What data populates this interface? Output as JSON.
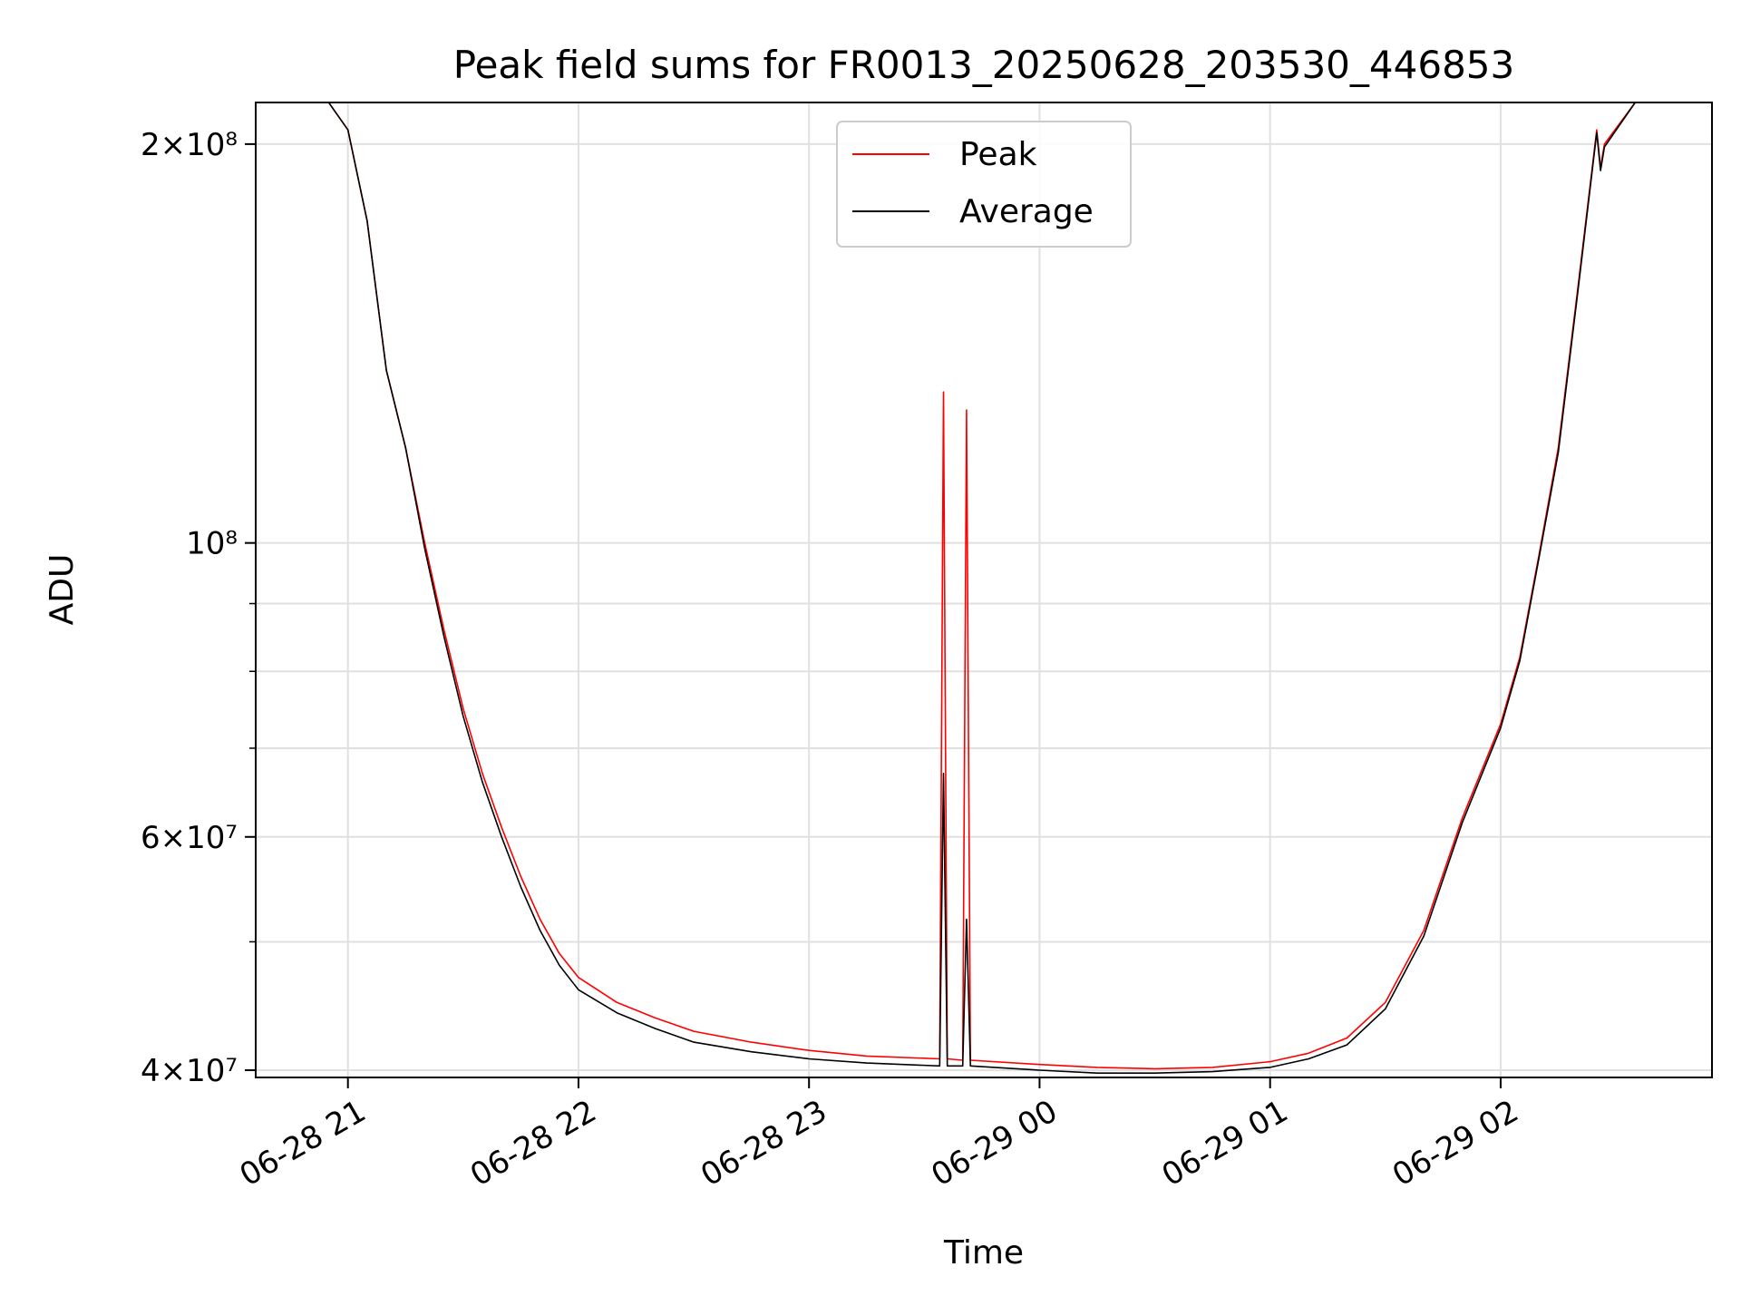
{
  "chart_data": {
    "type": "line",
    "title": "Peak field sums for FR0013_20250628_203530_446853",
    "xlabel": "Time",
    "ylabel": "ADU",
    "y_scale": "log",
    "ylim": [
      39500000,
      215000000
    ],
    "xlim": [
      "2025-06-28 20:36",
      "2025-06-29 02:55"
    ],
    "grid": true,
    "legend_position": "upper center",
    "x_ticks": [
      {
        "value": "2025-06-28 21:00",
        "label": "06-28 21"
      },
      {
        "value": "2025-06-28 22:00",
        "label": "06-28 22"
      },
      {
        "value": "2025-06-28 23:00",
        "label": "06-28 23"
      },
      {
        "value": "2025-06-29 00:00",
        "label": "06-29 00"
      },
      {
        "value": "2025-06-29 01:00",
        "label": "06-29 01"
      },
      {
        "value": "2025-06-29 02:00",
        "label": "06-29 02"
      }
    ],
    "y_ticks": [
      {
        "value": 40000000,
        "label": "4×10⁷"
      },
      {
        "value": 60000000,
        "label": "6×10⁷"
      },
      {
        "value": 100000000,
        "label": "10⁸"
      },
      {
        "value": 200000000,
        "label": "2×10⁸"
      }
    ],
    "y_minor_ticks": [
      50000000,
      70000000,
      80000000,
      90000000
    ],
    "series": [
      {
        "name": "Peak",
        "color": "#ff0000",
        "x": [
          "2025-06-28 20:36",
          "2025-06-28 20:55",
          "2025-06-28 21:00",
          "2025-06-28 21:05",
          "2025-06-28 21:10",
          "2025-06-28 21:15",
          "2025-06-28 21:20",
          "2025-06-28 21:25",
          "2025-06-28 21:30",
          "2025-06-28 21:35",
          "2025-06-28 21:40",
          "2025-06-28 21:45",
          "2025-06-28 21:50",
          "2025-06-28 21:55",
          "2025-06-28 22:00",
          "2025-06-28 22:10",
          "2025-06-28 22:20",
          "2025-06-28 22:30",
          "2025-06-28 22:45",
          "2025-06-28 23:00",
          "2025-06-28 23:15",
          "2025-06-28 23:34",
          "2025-06-28 23:35",
          "2025-06-28 23:36",
          "2025-06-28 23:40",
          "2025-06-28 23:41",
          "2025-06-28 23:42",
          "2025-06-29 00:00",
          "2025-06-29 00:15",
          "2025-06-29 00:30",
          "2025-06-29 00:45",
          "2025-06-29 01:00",
          "2025-06-29 01:10",
          "2025-06-29 01:20",
          "2025-06-29 01:30",
          "2025-06-29 01:40",
          "2025-06-29 01:50",
          "2025-06-29 02:00",
          "2025-06-29 02:05",
          "2025-06-29 02:10",
          "2025-06-29 02:15",
          "2025-06-29 02:20",
          "2025-06-29 02:25",
          "2025-06-29 02:26",
          "2025-06-29 02:27",
          "2025-06-29 02:35",
          "2025-06-29 02:55"
        ],
        "values": [
          215000000,
          215000000,
          205000000,
          175000000,
          135000000,
          118000000,
          100000000,
          86000000,
          75000000,
          67000000,
          61000000,
          56000000,
          52000000,
          49000000,
          47000000,
          45000000,
          43800000,
          42800000,
          42000000,
          41400000,
          41000000,
          40800000,
          130000000,
          40800000,
          40700000,
          126000000,
          40700000,
          40400000,
          40200000,
          40100000,
          40200000,
          40600000,
          41200000,
          42300000,
          45000000,
          51000000,
          62000000,
          73000000,
          82000000,
          98000000,
          118000000,
          155000000,
          205000000,
          192000000,
          200000000,
          215000000,
          215000000
        ]
      },
      {
        "name": "Average",
        "color": "#000000",
        "x": [
          "2025-06-28 20:36",
          "2025-06-28 20:55",
          "2025-06-28 21:00",
          "2025-06-28 21:05",
          "2025-06-28 21:10",
          "2025-06-28 21:15",
          "2025-06-28 21:20",
          "2025-06-28 21:25",
          "2025-06-28 21:30",
          "2025-06-28 21:35",
          "2025-06-28 21:40",
          "2025-06-28 21:45",
          "2025-06-28 21:50",
          "2025-06-28 21:55",
          "2025-06-28 22:00",
          "2025-06-28 22:10",
          "2025-06-28 22:20",
          "2025-06-28 22:30",
          "2025-06-28 22:45",
          "2025-06-28 23:00",
          "2025-06-28 23:15",
          "2025-06-28 23:34",
          "2025-06-28 23:35",
          "2025-06-28 23:36",
          "2025-06-28 23:40",
          "2025-06-28 23:41",
          "2025-06-28 23:42",
          "2025-06-29 00:00",
          "2025-06-29 00:15",
          "2025-06-29 00:30",
          "2025-06-29 00:45",
          "2025-06-29 01:00",
          "2025-06-29 01:10",
          "2025-06-29 01:20",
          "2025-06-29 01:30",
          "2025-06-29 01:40",
          "2025-06-29 01:50",
          "2025-06-29 02:00",
          "2025-06-29 02:05",
          "2025-06-29 02:10",
          "2025-06-29 02:15",
          "2025-06-29 02:20",
          "2025-06-29 02:25",
          "2025-06-29 02:26",
          "2025-06-29 02:27",
          "2025-06-29 02:35",
          "2025-06-29 02:55"
        ],
        "values": [
          215000000,
          215000000,
          205000000,
          175000000,
          135000000,
          118000000,
          99000000,
          85000000,
          74000000,
          66000000,
          60000000,
          55000000,
          51000000,
          48000000,
          46000000,
          44200000,
          43000000,
          42000000,
          41300000,
          40800000,
          40500000,
          40300000,
          67000000,
          40300000,
          40300000,
          52000000,
          40300000,
          40000000,
          39800000,
          39800000,
          39900000,
          40200000,
          40800000,
          41800000,
          44500000,
          50500000,
          61500000,
          72500000,
          81500000,
          97500000,
          117000000,
          154000000,
          204000000,
          191000000,
          199000000,
          215000000,
          215000000
        ]
      }
    ]
  }
}
